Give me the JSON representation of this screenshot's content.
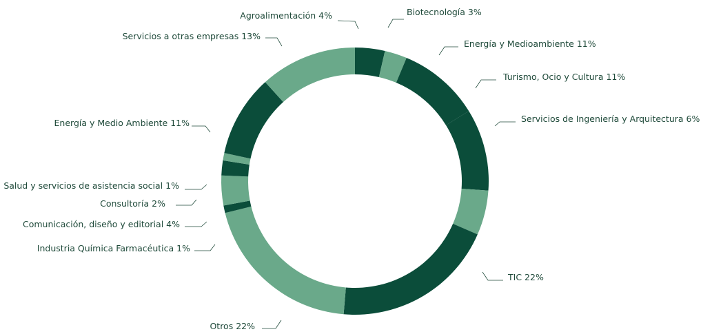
{
  "chart_data": {
    "type": "donut",
    "categories": [
      "Agroalimentación",
      "Biotecnología",
      "Energía y Medioambiente",
      "Turismo, Ocio y Cultura",
      "Servicios de Ingeniería y Arquitectura",
      "TIC",
      "Otros",
      "Industria Química Farmacéutica",
      "Comunicación, diseño y editorial",
      "Consultoría",
      "Salud y servicios de asistencia social",
      "Energía y Medio Ambiente",
      "Servicios a otras empresas"
    ],
    "values": [
      4,
      3,
      11,
      11,
      6,
      22,
      22,
      1,
      4,
      2,
      1,
      11,
      13
    ],
    "value_labels": [
      "4%",
      "3%",
      "11%",
      "11%",
      "6%",
      "22%",
      "22%",
      "1%",
      "4%",
      "2%",
      "1%",
      "11%",
      "13%"
    ],
    "colors": [
      "#0b4d3a",
      "#6aa98a",
      "#0b4d3a",
      "#0b4d3a",
      "#6aa98a",
      "#0b4d3a",
      "#6aa98a",
      "#0b4d3a",
      "#6aa98a",
      "#0b4d3a",
      "#6aa98a",
      "#0b4d3a",
      "#6aa98a"
    ]
  }
}
